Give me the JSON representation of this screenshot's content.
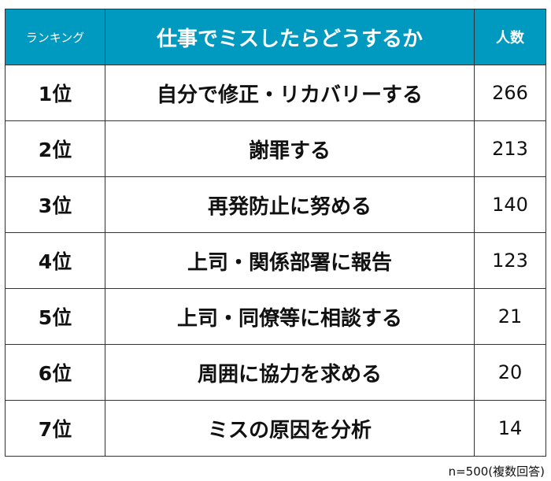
{
  "chart_data": {
    "type": "table",
    "columns": [
      "ランキング",
      "仕事でミスしたらどうするか",
      "人数"
    ],
    "rows": [
      {
        "rank": "1位",
        "label": "自分で修正・リカバリーする",
        "value": 266
      },
      {
        "rank": "2位",
        "label": "謝罪する",
        "value": 213
      },
      {
        "rank": "3位",
        "label": "再発防止に努める",
        "value": 140
      },
      {
        "rank": "4位",
        "label": "上司・関係部署に報告",
        "value": 123
      },
      {
        "rank": "5位",
        "label": "上司・同僚等に相談する",
        "value": 21
      },
      {
        "rank": "6位",
        "label": "周囲に協力を求める",
        "value": 20
      },
      {
        "rank": "7位",
        "label": "ミスの原因を分析",
        "value": 14
      }
    ],
    "note": "n=500(複数回答)",
    "header_color": "#0099bf"
  }
}
